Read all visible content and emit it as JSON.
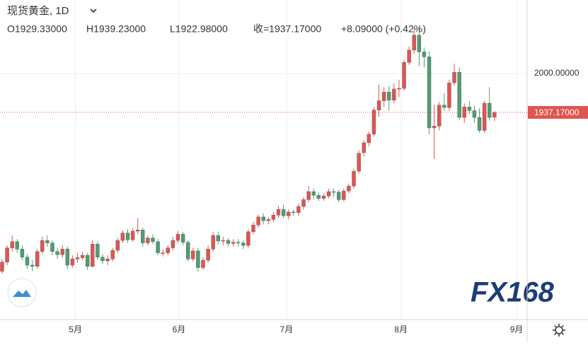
{
  "chart_data": {
    "type": "candlestick",
    "title": "现货黄金, 1D",
    "legend_values": [
      "O1929.33000",
      "H1939.23000",
      "L1922.98000",
      "收=1937.17000",
      "+8.09000 (+0.42%)"
    ],
    "watermark": "FX168",
    "up_color": "#e05550",
    "down_color": "#4d9e74",
    "grid": true,
    "xlim": [
      -0.42,
      104.5
    ],
    "ylim": [
      1602,
      2119
    ],
    "yticks": [
      {
        "value": 2000,
        "label": "2000.00000"
      }
    ],
    "last_price": {
      "value": 1937.17,
      "label": "1937.17000"
    },
    "xticks": [
      {
        "value": 14.6,
        "label": "5月"
      },
      {
        "value": 35.2,
        "label": "6月"
      },
      {
        "value": 56.6,
        "label": "7月"
      },
      {
        "value": 79.4,
        "label": "8月"
      },
      {
        "value": 102.4,
        "label": "9月"
      }
    ],
    "ohlc": [
      [
        1680,
        1700,
        1676,
        1695
      ],
      [
        1695,
        1722,
        1690,
        1718
      ],
      [
        1718,
        1738,
        1712,
        1728
      ],
      [
        1728,
        1732,
        1710,
        1716
      ],
      [
        1716,
        1722,
        1698,
        1703
      ],
      [
        1703,
        1708,
        1684,
        1690
      ],
      [
        1690,
        1698,
        1680,
        1688
      ],
      [
        1688,
        1716,
        1684,
        1712
      ],
      [
        1712,
        1736,
        1708,
        1730
      ],
      [
        1730,
        1738,
        1720,
        1726
      ],
      [
        1726,
        1730,
        1706,
        1712
      ],
      [
        1712,
        1718,
        1700,
        1707
      ],
      [
        1707,
        1722,
        1702,
        1716
      ],
      [
        1716,
        1720,
        1684,
        1690
      ],
      [
        1690,
        1706,
        1686,
        1700
      ],
      [
        1700,
        1710,
        1694,
        1702
      ],
      [
        1702,
        1712,
        1698,
        1706
      ],
      [
        1706,
        1710,
        1682,
        1688
      ],
      [
        1688,
        1730,
        1686,
        1724
      ],
      [
        1724,
        1728,
        1698,
        1703
      ],
      [
        1703,
        1708,
        1692,
        1697
      ],
      [
        1697,
        1706,
        1690,
        1700
      ],
      [
        1700,
        1718,
        1696,
        1714
      ],
      [
        1714,
        1734,
        1710,
        1730
      ],
      [
        1730,
        1746,
        1726,
        1742
      ],
      [
        1742,
        1748,
        1726,
        1731
      ],
      [
        1731,
        1750,
        1728,
        1745
      ],
      [
        1745,
        1766,
        1740,
        1747
      ],
      [
        1747,
        1750,
        1720,
        1726
      ],
      [
        1726,
        1738,
        1722,
        1734
      ],
      [
        1734,
        1740,
        1724,
        1728
      ],
      [
        1728,
        1732,
        1706,
        1710
      ],
      [
        1710,
        1716,
        1704,
        1710
      ],
      [
        1710,
        1722,
        1706,
        1718
      ],
      [
        1718,
        1736,
        1714,
        1730
      ],
      [
        1730,
        1745,
        1726,
        1740
      ],
      [
        1740,
        1744,
        1722,
        1727
      ],
      [
        1727,
        1730,
        1696,
        1700
      ],
      [
        1700,
        1718,
        1696,
        1713
      ],
      [
        1713,
        1718,
        1680,
        1686
      ],
      [
        1686,
        1702,
        1682,
        1698
      ],
      [
        1698,
        1722,
        1694,
        1716
      ],
      [
        1716,
        1744,
        1712,
        1738
      ],
      [
        1738,
        1744,
        1724,
        1729
      ],
      [
        1729,
        1736,
        1722,
        1730
      ],
      [
        1730,
        1734,
        1720,
        1725
      ],
      [
        1725,
        1732,
        1720,
        1727
      ],
      [
        1727,
        1732,
        1720,
        1726
      ],
      [
        1726,
        1730,
        1716,
        1722
      ],
      [
        1722,
        1748,
        1718,
        1744
      ],
      [
        1744,
        1760,
        1740,
        1755
      ],
      [
        1755,
        1772,
        1750,
        1768
      ],
      [
        1768,
        1774,
        1756,
        1762
      ],
      [
        1762,
        1768,
        1756,
        1764
      ],
      [
        1764,
        1776,
        1760,
        1771
      ],
      [
        1771,
        1786,
        1766,
        1780
      ],
      [
        1780,
        1788,
        1766,
        1770
      ],
      [
        1770,
        1780,
        1764,
        1776
      ],
      [
        1776,
        1780,
        1770,
        1775
      ],
      [
        1775,
        1790,
        1770,
        1785
      ],
      [
        1785,
        1800,
        1780,
        1796
      ],
      [
        1796,
        1818,
        1792,
        1809
      ],
      [
        1809,
        1814,
        1796,
        1803
      ],
      [
        1803,
        1808,
        1794,
        1798
      ],
      [
        1798,
        1806,
        1794,
        1802
      ],
      [
        1802,
        1814,
        1798,
        1809
      ],
      [
        1809,
        1814,
        1800,
        1808
      ],
      [
        1808,
        1812,
        1792,
        1796
      ],
      [
        1796,
        1814,
        1794,
        1810
      ],
      [
        1810,
        1822,
        1806,
        1818
      ],
      [
        1818,
        1846,
        1814,
        1842
      ],
      [
        1842,
        1876,
        1838,
        1871
      ],
      [
        1872,
        1892,
        1866,
        1888
      ],
      [
        1888,
        1906,
        1882,
        1902
      ],
      [
        1902,
        1946,
        1898,
        1941
      ],
      [
        1941,
        1982,
        1930,
        1956
      ],
      [
        1956,
        1978,
        1946,
        1970
      ],
      [
        1970,
        1980,
        1940,
        1957
      ],
      [
        1957,
        1984,
        1952,
        1975
      ],
      [
        1975,
        1990,
        1962,
        1976
      ],
      [
        1976,
        2022,
        1972,
        2018
      ],
      [
        2018,
        2044,
        2014,
        2038
      ],
      [
        2038,
        2074,
        2032,
        2062
      ],
      [
        2062,
        2074,
        2012,
        2035
      ],
      [
        2035,
        2042,
        2010,
        2027
      ],
      [
        2027,
        2036,
        1902,
        1912
      ],
      [
        1912,
        1950,
        1862,
        1915
      ],
      [
        1915,
        1954,
        1908,
        1949
      ],
      [
        1949,
        1968,
        1940,
        1945
      ],
      [
        1945,
        1990,
        1940,
        1985
      ],
      [
        1985,
        2016,
        1980,
        2002
      ],
      [
        2002,
        2010,
        1925,
        1929
      ],
      [
        1929,
        1952,
        1920,
        1946
      ],
      [
        1946,
        1956,
        1934,
        1940
      ],
      [
        1940,
        1948,
        1920,
        1929
      ],
      [
        1929,
        1944,
        1904,
        1908
      ],
      [
        1908,
        1956,
        1904,
        1952
      ],
      [
        1952,
        1978,
        1924,
        1929
      ],
      [
        1929.33,
        1939.23,
        1922.98,
        1937.17
      ]
    ]
  }
}
